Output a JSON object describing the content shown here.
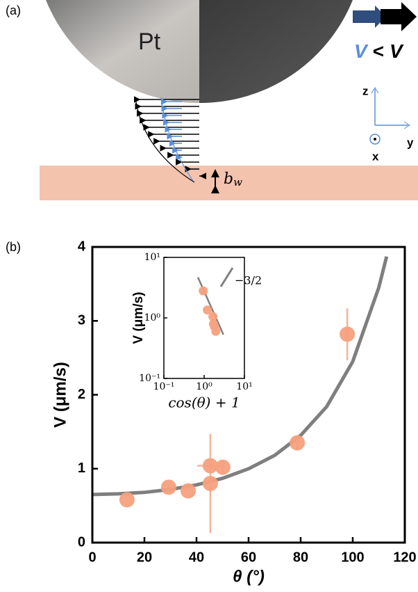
{
  "panel_a": {
    "label": "(a)",
    "sphere_label": "Pt",
    "speed_compare": [
      "V",
      "<",
      "V"
    ],
    "axes": [
      "z",
      "y",
      "x"
    ],
    "slip_length": {
      "base": "b",
      "sub": "w"
    }
  },
  "panel_b": {
    "label": "(b)"
  },
  "chart_data": [
    {
      "type": "scatter",
      "x_label": "θ (°)",
      "y_label": "V (μm/s)",
      "xlim": [
        0,
        120
      ],
      "ylim": [
        0,
        4
      ],
      "xticks": [
        0,
        20,
        40,
        60,
        80,
        100,
        120
      ],
      "yticks": [
        0,
        1,
        2,
        3,
        4
      ],
      "series": [
        {
          "type": "scatter",
          "color": "#f6a07e",
          "x": [
            13.3,
            29.3,
            36.8,
            45.3,
            45.3,
            50.1,
            78.7,
            97.9
          ],
          "values": [
            0.58,
            0.75,
            0.7,
            0.8,
            1.04,
            1.02,
            1.35,
            2.82
          ],
          "x_error": [
            null,
            null,
            null,
            null,
            5,
            null,
            null,
            null
          ],
          "y_error": [
            null,
            null,
            null,
            0.67,
            null,
            0.1,
            0.1,
            0.35
          ]
        },
        {
          "type": "line",
          "color": "#7f7f7f",
          "x": [
            0,
            10,
            20,
            30,
            40,
            50,
            60,
            70,
            80,
            90,
            100,
            110,
            113
          ],
          "values": [
            0.65,
            0.66,
            0.68,
            0.72,
            0.78,
            0.87,
            1.0,
            1.18,
            1.45,
            1.84,
            2.45,
            3.45,
            3.87
          ]
        }
      ]
    },
    {
      "type": "scatter",
      "log_x": true,
      "log_y": true,
      "x_label": "cos(θ) + 1",
      "y_label": "V (μm/s)",
      "xlim": [
        0.1,
        10
      ],
      "ylim": [
        0.1,
        10
      ],
      "xticks": [
        {
          "value": 0.1,
          "label": "10⁻¹"
        },
        {
          "value": 1,
          "label": "10⁰"
        },
        {
          "value": 10,
          "label": "10¹"
        }
      ],
      "yticks": [
        {
          "value": 0.1,
          "label": "10⁻¹"
        },
        {
          "value": 1,
          "label": "10⁰"
        },
        {
          "value": 10,
          "label": "10¹"
        }
      ],
      "annotation": "−3/2",
      "series": [
        {
          "type": "scatter",
          "color": "#f6a07e",
          "x": [
            0.95,
            1.2,
            1.65,
            1.7,
            1.8,
            1.95
          ],
          "values": [
            2.8,
            1.35,
            1.05,
            0.8,
            0.72,
            0.6
          ]
        },
        {
          "type": "line",
          "color": "#7f7f7f",
          "x": [
            0.7,
            3
          ],
          "values": [
            4.7,
            0.53
          ]
        }
      ]
    }
  ]
}
